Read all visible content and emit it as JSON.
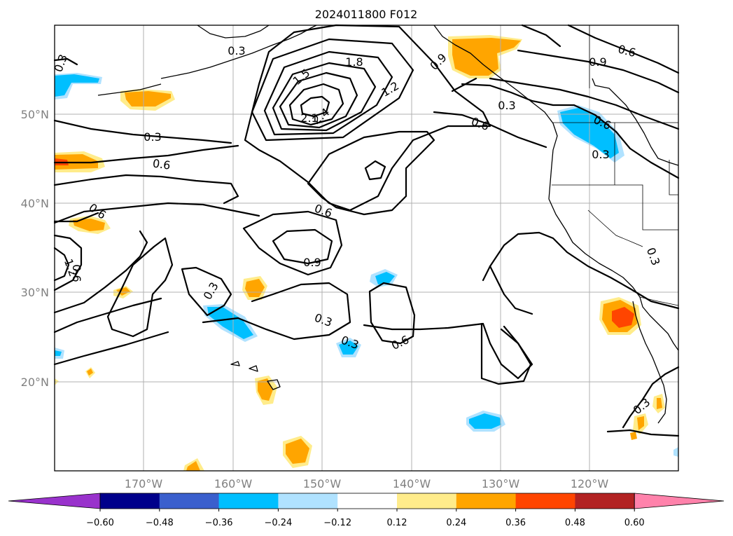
{
  "title": "2024011800 F012",
  "lat_labels": [
    "50°N",
    "40°N",
    "30°N",
    "20°N"
  ],
  "lon_labels": [
    "170°W",
    "160°W",
    "150°W",
    "140°W",
    "130°W",
    "120°W"
  ],
  "colorbar": {
    "ticks": [
      "−0.60",
      "−0.48",
      "−0.36",
      "−0.24",
      "−0.12",
      "0.12",
      "0.24",
      "0.36",
      "0.48",
      "0.60"
    ],
    "colors": [
      "#9932cc",
      "#00008b",
      "#3a5fcd",
      "#00bfff",
      "#b0e2ff",
      "#ffffff",
      "#ffec8b",
      "#ffa500",
      "#ff4500",
      "#b22222",
      "#ff82ab"
    ]
  },
  "contour_labels": [
    "0.3",
    "0.3",
    "1.5",
    "1.8",
    "2.1",
    "2.4",
    "1.2",
    "0.9",
    "0.6",
    "0.3",
    "0.6",
    "0.9",
    "0.6",
    "0.3",
    "0.6",
    "0.6",
    "0.3",
    "0.6",
    "0.6",
    "0.9",
    "0.3",
    "0.3",
    "0.3",
    "0.6",
    "1.2",
    "0.6",
    "0.3",
    "0.3"
  ]
}
